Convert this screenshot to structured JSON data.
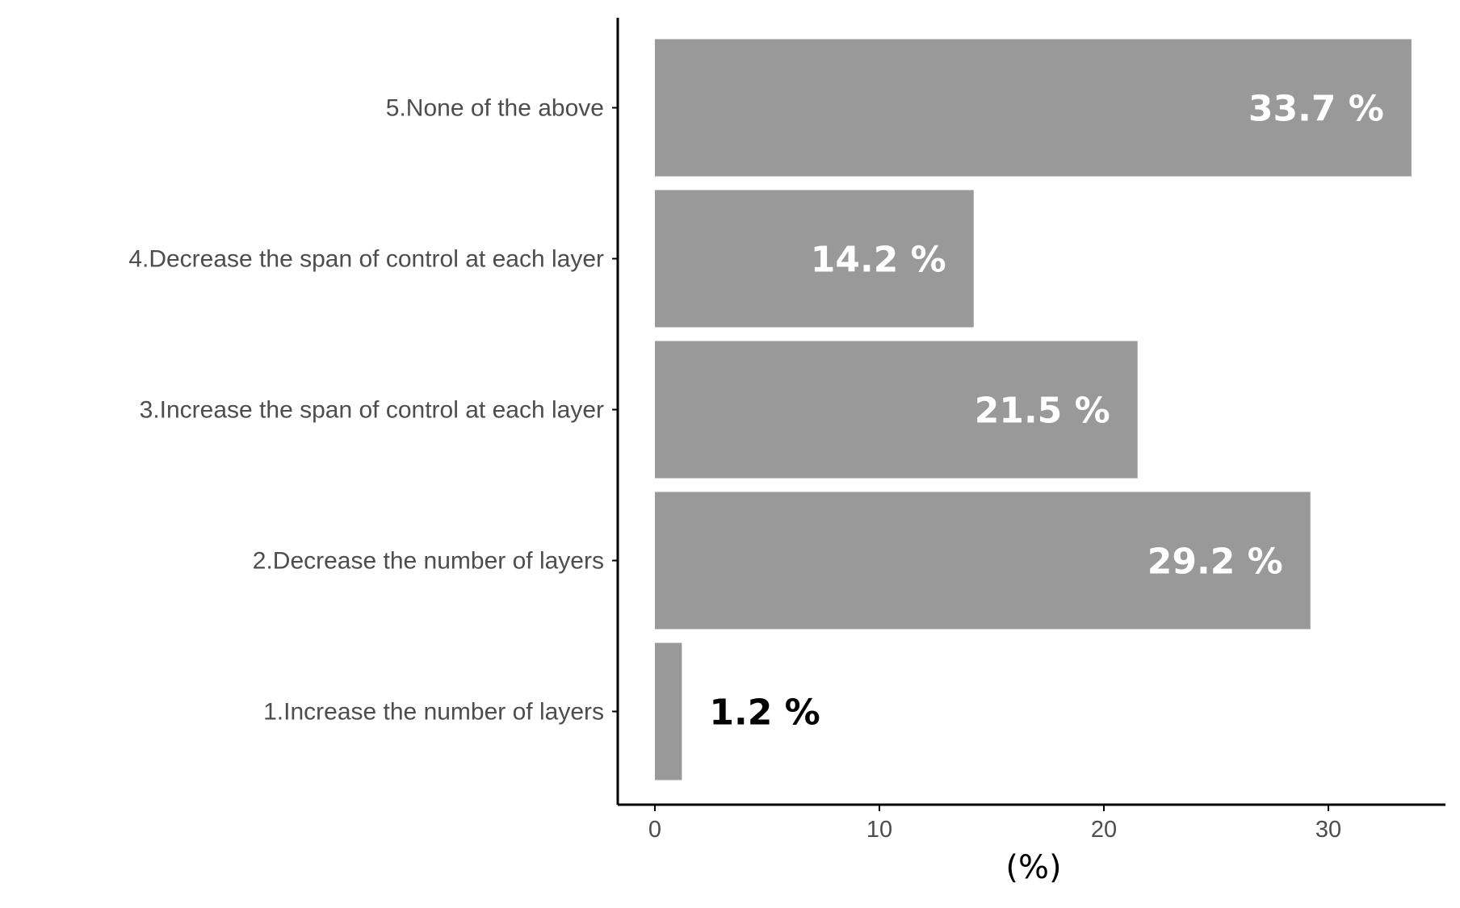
{
  "chart_data": {
    "type": "bar",
    "orientation": "horizontal",
    "categories": [
      "1.Increase the number of layers",
      "2.Decrease the number of layers",
      "3.Increase the span of control at each layer",
      "4.Decrease the span of control at each layer",
      "5.None of the above"
    ],
    "values": [
      1.2,
      29.2,
      21.5,
      14.2,
      33.7
    ],
    "data_labels": [
      "1.2 %",
      "29.2 %",
      "21.5 %",
      "14.2 %",
      "33.7 %"
    ],
    "title": "",
    "xlabel": "(%)",
    "ylabel": "",
    "xlim": [
      0,
      35
    ],
    "x_ticks": [
      0,
      10,
      20,
      30
    ],
    "x_tick_labels": [
      "0",
      "10",
      "20",
      "30"
    ],
    "grid": false,
    "legend": "none",
    "colors": {
      "bar": "#999999",
      "axis": "#000000",
      "label_inside": "#ffffff",
      "label_outside": "#000000"
    }
  }
}
